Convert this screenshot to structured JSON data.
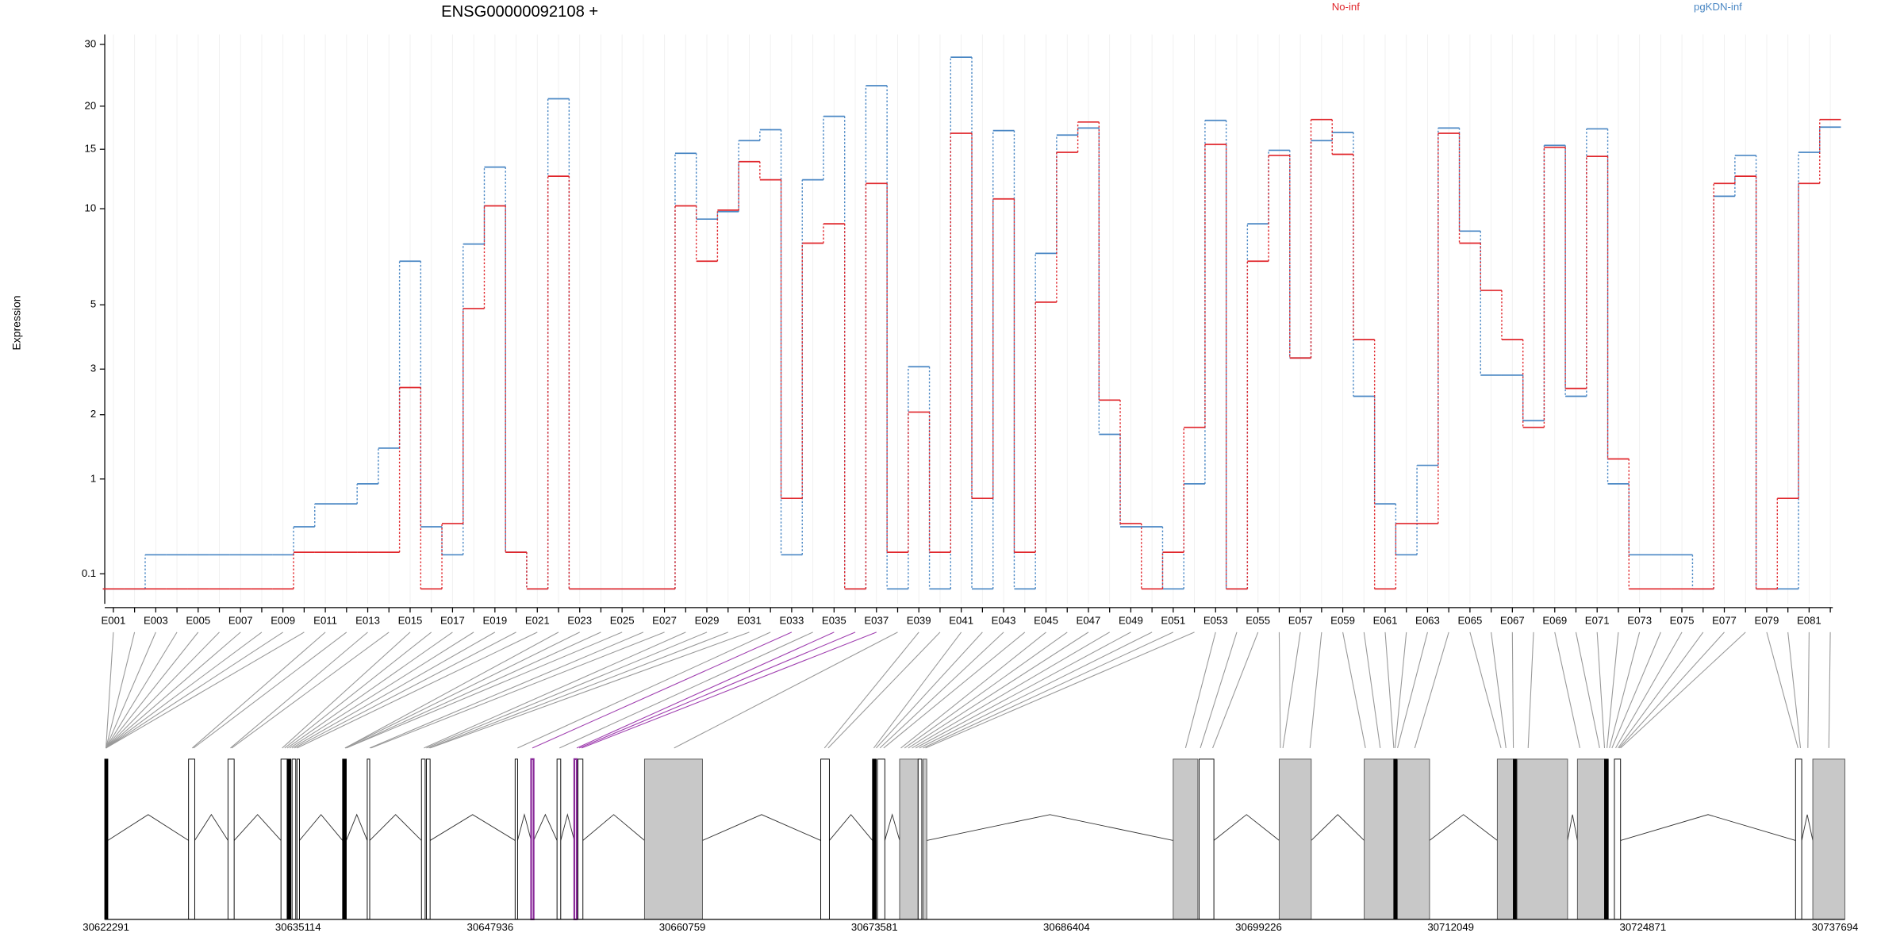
{
  "chart_data": {
    "type": "step",
    "title": "ENSG00000092108 +",
    "y_label": "Expression",
    "categories": [
      "E001",
      null,
      "E003",
      null,
      "E005",
      null,
      "E007",
      null,
      "E009",
      null,
      "E011",
      null,
      "E013",
      null,
      "E015",
      null,
      "E017",
      null,
      "E019",
      null,
      "E021",
      null,
      "E023",
      null,
      "E025",
      null,
      "E027",
      null,
      "E029",
      null,
      "E031",
      null,
      "E033",
      null,
      "E035",
      null,
      "E037",
      null,
      "E039",
      null,
      "E041",
      null,
      "E043",
      null,
      "E045",
      null,
      "E047",
      null,
      "E049",
      null,
      "E051",
      null,
      "E053",
      null,
      "E055",
      null,
      "E057",
      null,
      "E059",
      null,
      "E061",
      null,
      "E063",
      null,
      "E065",
      null,
      "E067",
      null,
      "E069",
      null,
      "E071",
      null,
      "E073",
      null,
      "E075",
      null,
      "E077",
      null,
      "E079",
      null,
      "E081",
      null
    ],
    "series": [
      {
        "name": "pgKDN-inf",
        "color": "#4a87c4",
        "values": [
          0,
          0,
          0.24,
          0.24,
          0.24,
          0.24,
          0.24,
          0.24,
          0.24,
          0.48,
          0.71,
          0.71,
          0.94,
          1.43,
          6.9,
          0.48,
          0.24,
          7.8,
          13.3,
          0.26,
          0,
          21,
          0,
          0,
          0,
          0,
          0,
          14.6,
          9.3,
          9.8,
          15.9,
          17.1,
          0.24,
          12.2,
          18.7,
          0,
          22.9,
          0,
          3.06,
          0,
          27.6,
          0,
          17,
          0,
          7.3,
          16.5,
          17.3,
          1.65,
          0.48,
          0.48,
          0,
          0.94,
          18.2,
          0,
          9,
          14.9,
          3.29,
          15.9,
          16.8,
          2.37,
          0.71,
          0.24,
          1.18,
          17.3,
          8.55,
          2.85,
          2.85,
          1.89,
          15.4,
          2.37,
          17.2,
          0.94,
          0.24,
          0.24,
          0.24,
          0,
          10.9,
          14.4,
          0,
          0,
          14.7,
          17.4
        ]
      },
      {
        "name": "No-inf",
        "color": "#e0262b",
        "values": [
          0,
          0,
          0,
          0,
          0,
          0,
          0,
          0,
          0,
          0.26,
          0.26,
          0.26,
          0.26,
          0.26,
          2.56,
          0,
          0.51,
          4.86,
          10.2,
          0.26,
          0,
          12.5,
          0,
          0,
          0,
          0,
          0,
          10.2,
          6.9,
          9.9,
          13.8,
          12.2,
          0.77,
          7.85,
          9,
          0,
          11.9,
          0.26,
          2.05,
          0.26,
          16.7,
          0.77,
          10.7,
          0.26,
          5.1,
          14.7,
          18,
          2.29,
          0.51,
          0,
          0.26,
          1.77,
          15.5,
          0,
          6.9,
          14.4,
          3.29,
          18.3,
          14.5,
          3.82,
          0,
          0.51,
          0.51,
          16.7,
          7.85,
          5.57,
          3.82,
          1.77,
          15.2,
          2.54,
          14.3,
          1.27,
          0,
          0,
          0,
          0,
          11.9,
          12.5,
          0,
          0.77,
          11.9,
          18.3
        ]
      }
    ],
    "ylim": [
      -0.09,
      32
    ],
    "yticks": [
      0.1,
      1,
      2,
      3,
      5,
      10,
      15,
      20,
      30
    ],
    "yscale": "log1p",
    "grid": true
  },
  "gene_model": {
    "xlim": [
      30622291,
      30737694
    ],
    "xticks": [
      30622291,
      30635114,
      30647936,
      30660759,
      30673581,
      30686404,
      30699226,
      30712049,
      30724871,
      30737694
    ]
  }
}
